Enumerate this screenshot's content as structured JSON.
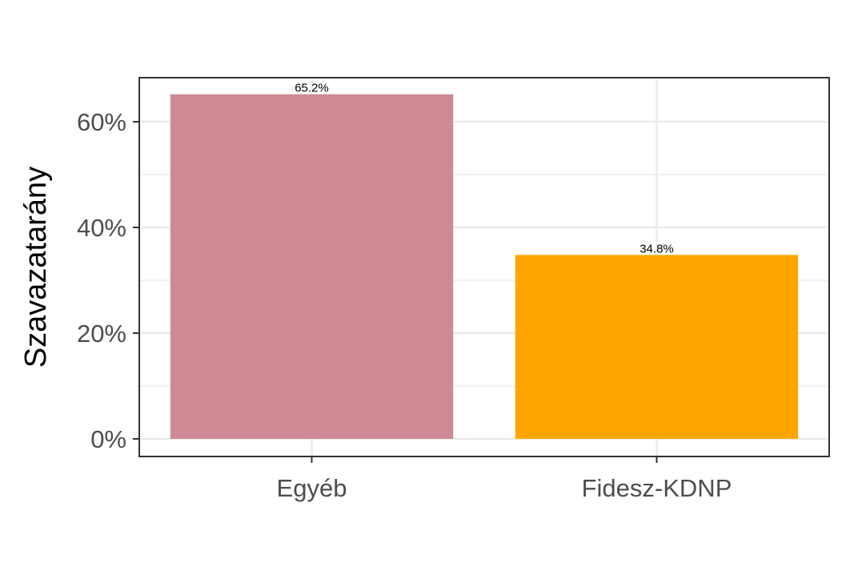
{
  "chart_data": {
    "type": "bar",
    "categories": [
      "Egyéb",
      "Fidesz-KDNP"
    ],
    "values": [
      65.2,
      34.8
    ],
    "data_labels": [
      "65.2%",
      "34.8%"
    ],
    "colors": [
      "#CD8A94",
      "#FFA500"
    ],
    "ylabel": "Szavazatarány",
    "xlabel": "",
    "ylim": [
      0,
      68.5
    ],
    "yticks": [
      0,
      20,
      40,
      60
    ],
    "ytick_labels": [
      "0%",
      "20%",
      "40%",
      "60%"
    ],
    "grid": true,
    "legend": "none"
  }
}
